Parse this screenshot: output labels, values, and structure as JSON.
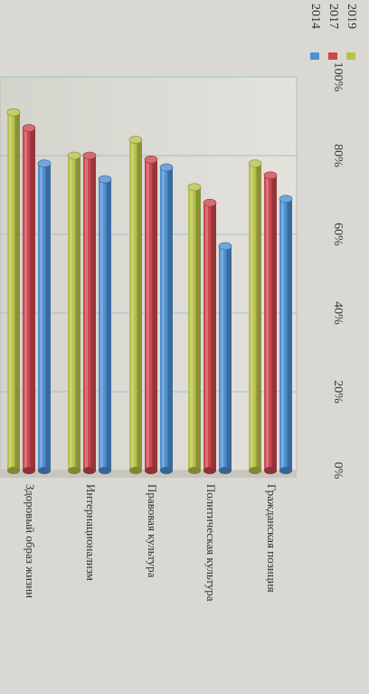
{
  "chart_data": {
    "type": "bar",
    "orientation": "horizontal",
    "rotation": "page rotated 90 degrees clockwise",
    "categories": [
      "Здоровый образ жизни",
      "Интернационализм",
      "Правовая культура",
      "Политическая культура",
      "Гражданская позиция"
    ],
    "series": [
      {
        "name": "2019",
        "values": [
          91,
          80,
          84,
          72,
          78
        ],
        "color": "#b7c24a"
      },
      {
        "name": "2017",
        "values": [
          87,
          80,
          79,
          68,
          75
        ],
        "color": "#c9474d"
      },
      {
        "name": "2014",
        "values": [
          78,
          74,
          77,
          57,
          69
        ],
        "color": "#4f8fd2"
      }
    ],
    "xticks": [
      "0%",
      "20%",
      "40%",
      "60%",
      "80%",
      "100%"
    ],
    "xlim": [
      0,
      100
    ],
    "grid": true,
    "legend_position": "right",
    "style": "3d cylinders"
  }
}
